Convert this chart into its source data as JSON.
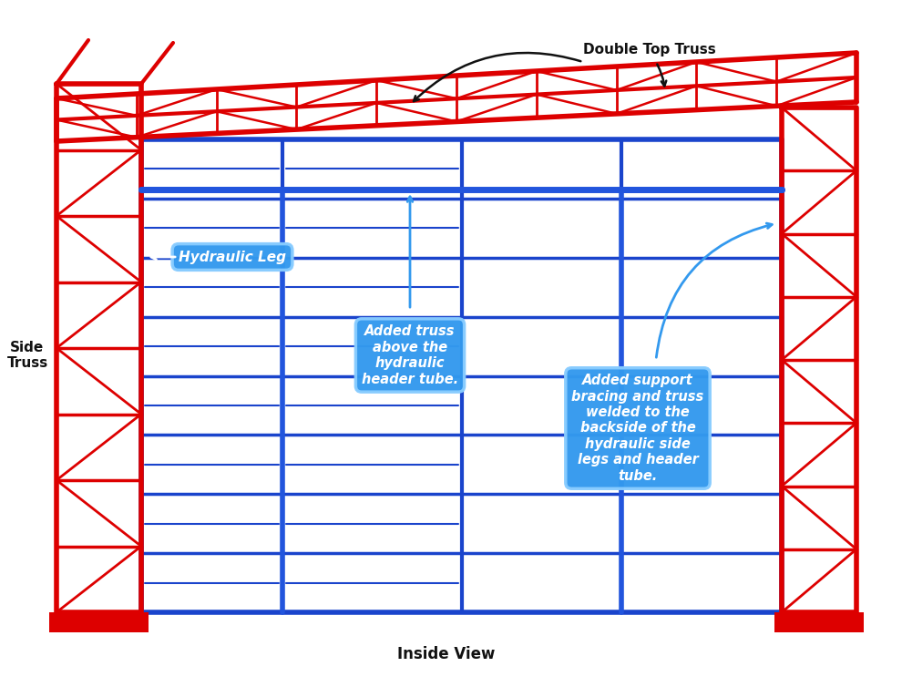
{
  "background_color": "#ffffff",
  "red_color": "#dd0000",
  "blue_color": "#1a44cc",
  "blue2_color": "#2255dd",
  "black_color": "#111111",
  "label_bg": "#3399ee",
  "label_border": "#66bbff",
  "label_text": "#ffffff",
  "annotations": {
    "double_top_truss": "Double Top Truss",
    "side_truss": "Side\nTruss",
    "hydraulic_leg": "Hydraulic Leg",
    "added_truss": "Added truss\nabove the\nhydraulic\nheader tube.",
    "added_support": "Added support\nbracing and truss\nwelded to the\nbackside of the\nhydraulic side\nlegs and header\ntube.",
    "inside_view": "Inside View"
  }
}
